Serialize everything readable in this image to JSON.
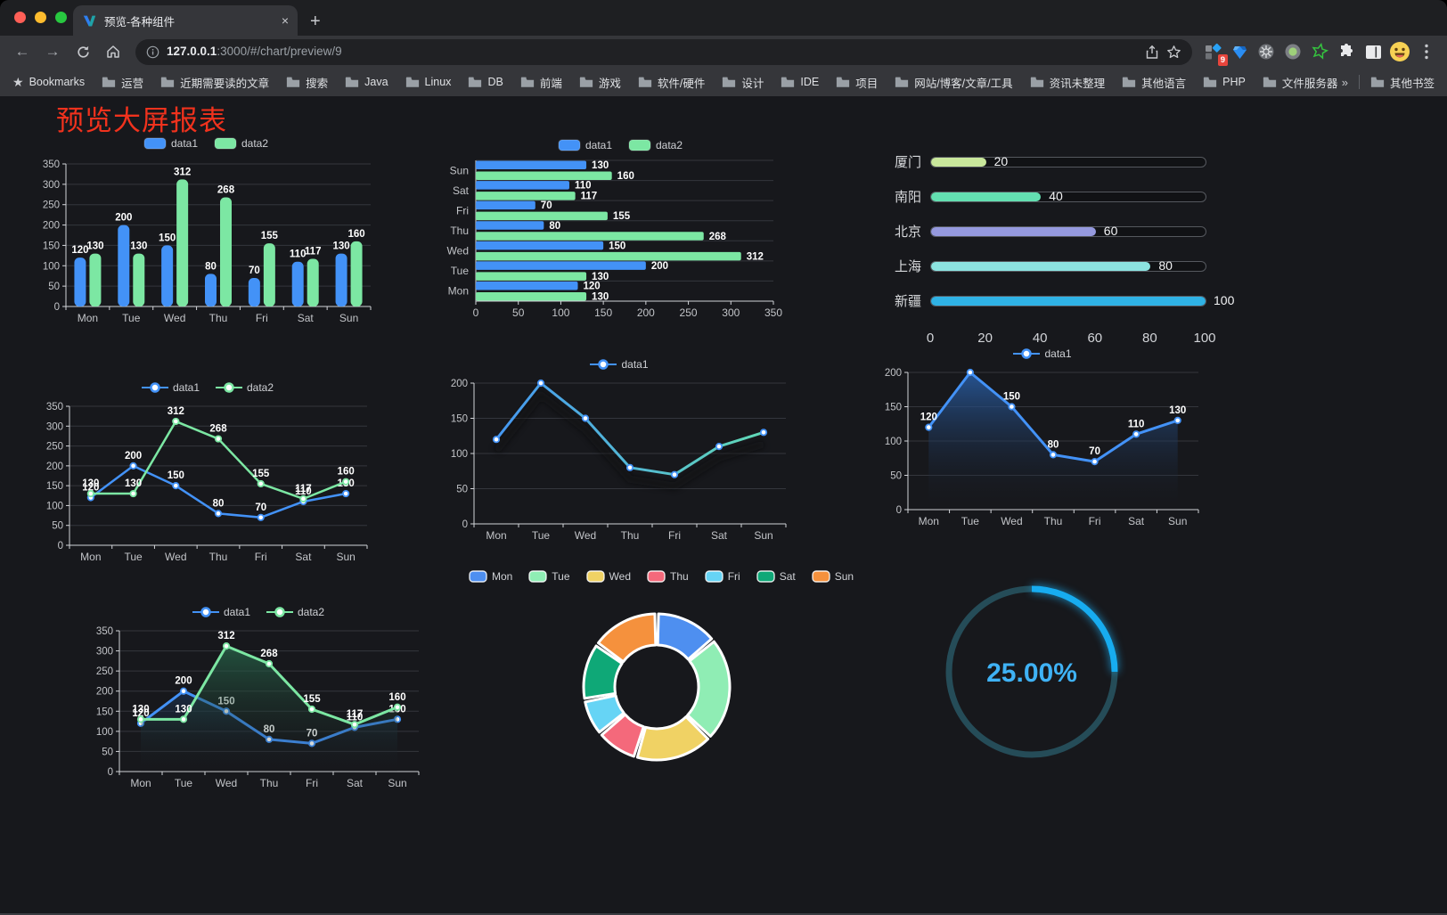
{
  "browser": {
    "traffic_lights": {
      "close": "#ff5f57",
      "minimize": "#febc2e",
      "zoom": "#28c840"
    },
    "tab": {
      "title": "预览-各种组件",
      "close": "×",
      "new_tab": "+"
    },
    "url": {
      "host": "127.0.0.1",
      "rest": ":3000/#/chart/preview/9"
    },
    "extension_badge": "9",
    "bookmarks_star_label": "Bookmarks",
    "bookmarks": [
      "运营",
      "近期需要读的文章",
      "搜索",
      "Java",
      "Linux",
      "DB",
      "前端",
      "游戏",
      "软件/硬件",
      "设计",
      "IDE",
      "项目",
      "网站/博客/文章/工具",
      "资讯未整理",
      "其他语言",
      "PHP",
      "文件服务器"
    ],
    "bookmarks_overflow": "»",
    "other_bookmarks": "其他书签"
  },
  "page": {
    "title": "预览大屏报表",
    "title_color": "#f1321d",
    "background": "#17181c"
  },
  "chart_data": {
    "grouped_bar": {
      "type": "bar",
      "categories": [
        "Mon",
        "Tue",
        "Wed",
        "Thu",
        "Fri",
        "Sat",
        "Sun"
      ],
      "series": [
        {
          "name": "data1",
          "color": "#4392f7",
          "values": [
            120,
            200,
            150,
            80,
            70,
            110,
            130
          ]
        },
        {
          "name": "data2",
          "color": "#7ce7a3",
          "values": [
            130,
            130,
            312,
            268,
            155,
            117,
            160
          ]
        }
      ],
      "ymax": 350,
      "ystep": 50,
      "legend": "rect"
    },
    "horizontal_bar": {
      "type": "bar",
      "categories": [
        "Mon",
        "Tue",
        "Wed",
        "Thu",
        "Fri",
        "Sat",
        "Sun"
      ],
      "series": [
        {
          "name": "data1",
          "color": "#4392f7",
          "values": [
            120,
            200,
            150,
            80,
            70,
            110,
            130
          ]
        },
        {
          "name": "data2",
          "color": "#7ce7a3",
          "values": [
            130,
            130,
            312,
            268,
            155,
            117,
            160
          ]
        }
      ],
      "xmax": 350,
      "xstep": 50,
      "legend": "rect"
    },
    "capsule_bar": {
      "type": "bar",
      "rows": [
        {
          "label": "厦门",
          "value": 20,
          "color": "#c9e79b"
        },
        {
          "label": "南阳",
          "value": 40,
          "color": "#63dfb1"
        },
        {
          "label": "北京",
          "value": 60,
          "color": "#9599de"
        },
        {
          "label": "上海",
          "value": 80,
          "color": "#8ce3e0"
        },
        {
          "label": "新疆",
          "value": 100,
          "color": "#2fb2e5"
        }
      ],
      "max": 100,
      "ticks": [
        0,
        20,
        40,
        60,
        80,
        100
      ]
    },
    "two_line": {
      "type": "line",
      "categories": [
        "Mon",
        "Tue",
        "Wed",
        "Thu",
        "Fri",
        "Sat",
        "Sun"
      ],
      "series": [
        {
          "name": "data1",
          "color": "#4392f7",
          "values": [
            120,
            200,
            150,
            80,
            70,
            110,
            130
          ],
          "labels": true
        },
        {
          "name": "data2",
          "color": "#7ce7a3",
          "values": [
            130,
            130,
            312,
            268,
            155,
            117,
            160
          ],
          "labels": true
        }
      ],
      "ymax": 350,
      "ystep": 50,
      "legend": "line"
    },
    "gradient_line": {
      "type": "line",
      "categories": [
        "Mon",
        "Tue",
        "Wed",
        "Thu",
        "Fri",
        "Sat",
        "Sun"
      ],
      "series": [
        {
          "name": "data1",
          "color": "#4392f7",
          "gradient": [
            "#4392f7",
            "#63dfb1"
          ],
          "values": [
            120,
            200,
            150,
            80,
            70,
            110,
            130
          ],
          "labels": false
        }
      ],
      "ymax": 200,
      "ystep": 50,
      "legend": "line",
      "shadow": true
    },
    "area_line": {
      "type": "area",
      "categories": [
        "Mon",
        "Tue",
        "Wed",
        "Thu",
        "Fri",
        "Sat",
        "Sun"
      ],
      "series": [
        {
          "name": "data1",
          "color": "#4392f7",
          "values": [
            120,
            200,
            150,
            80,
            70,
            110,
            130
          ],
          "labels": true,
          "area": [
            "rgba(41,94,166,0.85)",
            "rgba(23,24,28,0.03)"
          ]
        }
      ],
      "ymax": 200,
      "ystep": 50,
      "legend": "line"
    },
    "two_area_line": {
      "type": "area",
      "categories": [
        "Mon",
        "Tue",
        "Wed",
        "Thu",
        "Fri",
        "Sat",
        "Sun"
      ],
      "series": [
        {
          "name": "data1",
          "color": "#4392f7",
          "values": [
            120,
            200,
            150,
            80,
            70,
            110,
            130
          ],
          "labels": true,
          "area": [
            "rgba(38,92,166,0.8)",
            "rgba(23,24,28,0.04)"
          ]
        },
        {
          "name": "data2",
          "color": "#7ce7a3",
          "values": [
            130,
            130,
            312,
            268,
            155,
            117,
            160
          ],
          "labels": true,
          "area": [
            "rgba(43,122,86,0.75)",
            "rgba(23,24,28,0.04)"
          ]
        }
      ],
      "ymax": 350,
      "ystep": 50,
      "legend": "line"
    },
    "donut": {
      "type": "pie",
      "items": [
        {
          "label": "Mon",
          "value": 120,
          "color": "#4e8ff0"
        },
        {
          "label": "Tue",
          "value": 200,
          "color": "#8fedb4"
        },
        {
          "label": "Wed",
          "value": 150,
          "color": "#f0d264"
        },
        {
          "label": "Thu",
          "value": 80,
          "color": "#f4697b"
        },
        {
          "label": "Fri",
          "value": 70,
          "color": "#66d4f5"
        },
        {
          "label": "Sat",
          "value": 110,
          "color": "#0fa877"
        },
        {
          "label": "Sun",
          "value": 130,
          "color": "#f5913d"
        }
      ]
    },
    "gauge": {
      "type": "gauge",
      "percent": 25,
      "value_label": "25.00%",
      "arc_color": "#17acf0",
      "track_color": "#254c58",
      "text_color": "#3fb2f5"
    }
  }
}
